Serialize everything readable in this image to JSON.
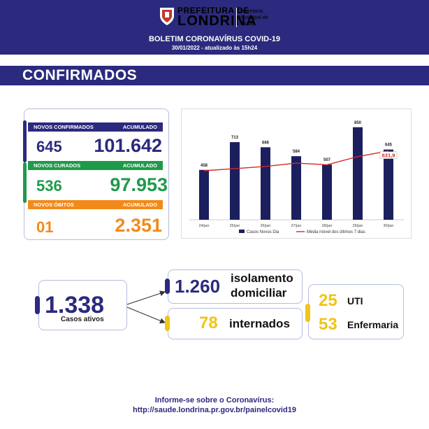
{
  "header": {
    "logo_line1": "PREFEITURA DE",
    "logo_line2": "LONDRINA",
    "logo_secretaria": [
      "Secretaria",
      "Municipal de",
      "Saúde"
    ],
    "title": "BOLETIM CORONAVÍRUS COVID-19",
    "date": "30/01/2022 - atualizado às 15h24"
  },
  "section": {
    "title": "CONFIRMADOS"
  },
  "stats": {
    "confirmados": {
      "label": "NOVOS CONFIRMADOS",
      "acc_label": "ACUMULADO",
      "new": "645",
      "total": "101.642",
      "color": "#2b2a7e"
    },
    "curados": {
      "label": "NOVOS CURADOS",
      "acc_label": "ACUMULADO",
      "new": "536",
      "total": "97.953",
      "color": "#1f9a4a"
    },
    "obitos": {
      "label": "NOVOS ÓBITOS",
      "acc_label": "ACUMULADO",
      "new": "01",
      "total": "2.351",
      "color": "#f28a1a"
    }
  },
  "chart_data": {
    "type": "bar",
    "categories": [
      "24/jan",
      "25/jan",
      "26/jan",
      "27/jan",
      "28/jan",
      "29/jan",
      "30/jan"
    ],
    "series": [
      {
        "name": "Casos Novos Dia",
        "type": "bar",
        "color": "#1c1f5e",
        "values": [
          458,
          713,
          666,
          584,
          507,
          850,
          645
        ]
      }
    ],
    "line_values": [
      450,
      470,
      490,
      520,
      505,
      580,
      631.9
    ],
    "line_label": "631,9",
    "line_legend": "Média móvel dos últimos 7 dias",
    "line_color": "#d62728",
    "ylim": [
      0,
      900
    ]
  },
  "lower": {
    "ativos": {
      "value": "1.338",
      "label": "Casos ativos"
    },
    "isolamento": {
      "value": "1.260",
      "label1": "isolamento",
      "label2": "domiciliar"
    },
    "internados": {
      "value": "78",
      "label": "internados"
    },
    "uti": {
      "value": "25",
      "label": "UTI"
    },
    "enfermaria": {
      "value": "53",
      "label": "Enfermaria"
    }
  },
  "footer": {
    "line1": "Informe-se sobre o Coronavírus:",
    "line2": "http://saude.londrina.pr.gov.br/painelcovid19"
  }
}
